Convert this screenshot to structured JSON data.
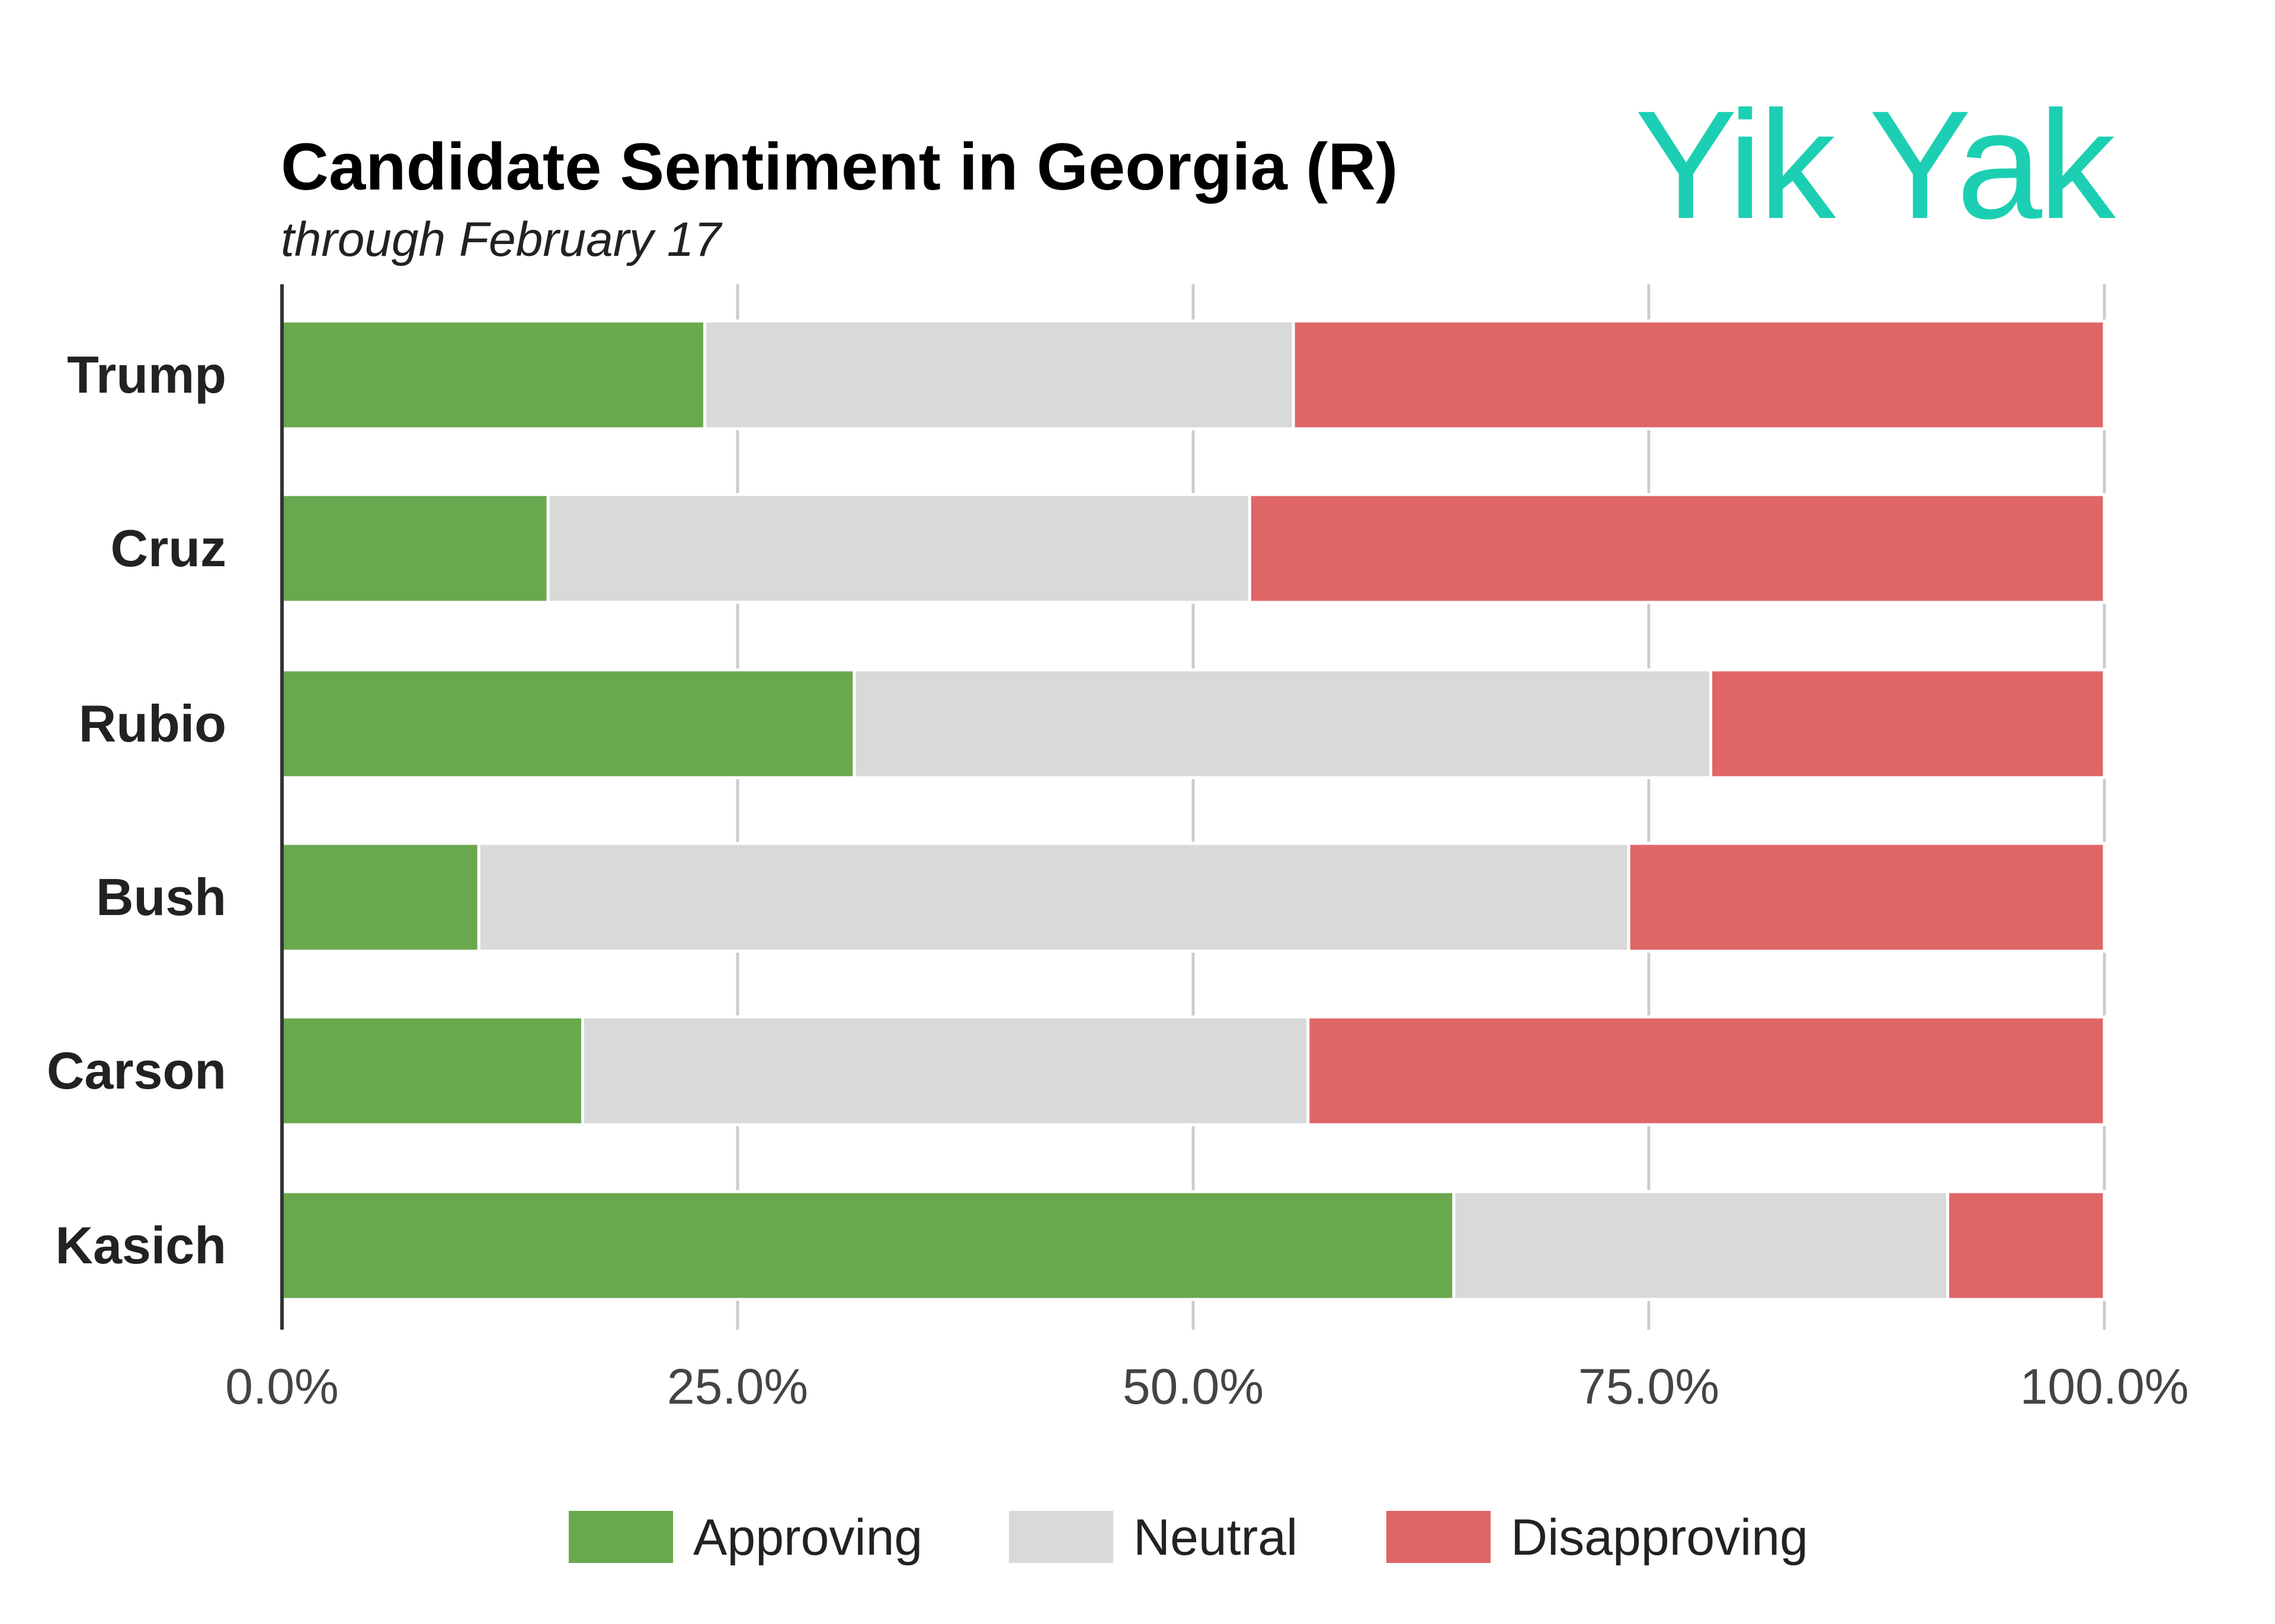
{
  "logo": {
    "text": "Yik Yak",
    "color": "#1ccfb2"
  },
  "chart_data": {
    "type": "bar",
    "orientation": "horizontal",
    "stacked": true,
    "title": "Candidate Sentiment in Georgia (R)",
    "subtitle": "through February 17",
    "categories": [
      "Trump",
      "Cruz",
      "Rubio",
      "Bush",
      "Carson",
      "Kasich"
    ],
    "series": [
      {
        "name": "Approving",
        "color": "#6aa84f",
        "values": [
          23.2,
          14.6,
          31.4,
          10.8,
          16.5,
          64.3
        ]
      },
      {
        "name": "Neutral",
        "color": "#d9d9d9",
        "values": [
          32.3,
          38.5,
          47.0,
          63.1,
          39.8,
          27.1
        ]
      },
      {
        "name": "Disapproving",
        "color": "#e06666",
        "values": [
          44.5,
          46.9,
          21.6,
          26.1,
          43.7,
          8.6
        ]
      }
    ],
    "xlim": [
      0,
      100
    ],
    "xticks": [
      "0.0%",
      "25.0%",
      "50.0%",
      "75.0%",
      "100.0%"
    ],
    "grid": true,
    "legend_position": "bottom"
  }
}
